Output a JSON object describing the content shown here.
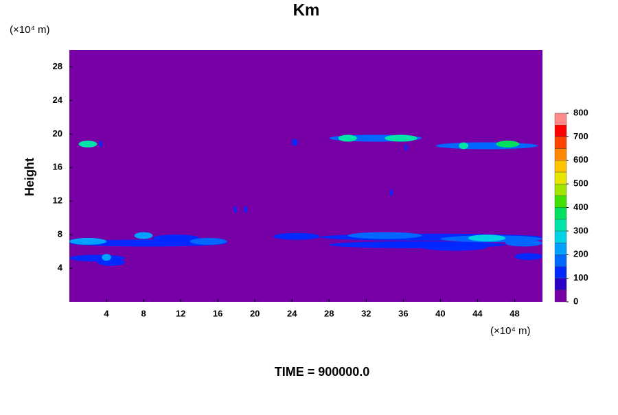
{
  "chart_data": {
    "type": "contour",
    "title": "Km",
    "y_unit": "(×10⁴ m)",
    "x_unit": "(×10⁴ m)",
    "y_label": "Height",
    "footer": "TIME = 900000.0",
    "xlim": [
      0,
      51
    ],
    "xticks": [
      4,
      8,
      12,
      16,
      20,
      24,
      28,
      32,
      36,
      40,
      44,
      48
    ],
    "ylim": [
      0,
      30
    ],
    "yticks": [
      4,
      8,
      12,
      16,
      20,
      24,
      28
    ],
    "colorbar": {
      "levels": [
        0,
        50,
        100,
        150,
        200,
        250,
        300,
        350,
        400,
        450,
        500,
        550,
        600,
        650,
        700,
        750,
        800
      ],
      "colors": [
        "#7600a6",
        "#2a00c4",
        "#0028ff",
        "#0068ff",
        "#00a0ff",
        "#00d2e6",
        "#00e4a8",
        "#00e060",
        "#40e000",
        "#a0e400",
        "#e6e600",
        "#ffc400",
        "#ff8800",
        "#ff4400",
        "#ff0000",
        "#ff8a8a"
      ],
      "ticks": [
        0,
        100,
        200,
        300,
        400,
        500,
        600,
        700,
        800
      ]
    },
    "features": {
      "x_start": [
        0,
        0,
        0,
        3,
        3.5,
        7,
        9,
        13,
        22,
        27,
        30,
        28,
        40,
        43,
        47,
        38,
        48,
        1,
        28,
        29,
        34,
        39.5,
        46,
        42,
        3.3,
        17.8,
        18.9,
        24,
        34.6,
        36.2
      ],
      "x_end": [
        17,
        4,
        6,
        6,
        4.5,
        9,
        14,
        17,
        27,
        51,
        38,
        47,
        51,
        47,
        51,
        45,
        51,
        3,
        38,
        31,
        37.5,
        50.5,
        48.5,
        43,
        3.5,
        18,
        19.1,
        24.6,
        34.8,
        36.4
      ],
      "y": [
        7.0,
        7.2,
        5.2,
        4.7,
        5.3,
        7.9,
        7.6,
        7.2,
        7.8,
        7.7,
        7.9,
        6.8,
        7.5,
        7.6,
        7.0,
        6.5,
        5.4,
        18.8,
        19.5,
        19.5,
        19.5,
        18.6,
        18.8,
        18.6,
        18.8,
        11,
        11,
        19,
        13,
        18.4
      ],
      "values": [
        100,
        200,
        100,
        100,
        200,
        200,
        100,
        150,
        100,
        100,
        150,
        100,
        150,
        250,
        150,
        100,
        100,
        300,
        150,
        300,
        300,
        150,
        350,
        300,
        100,
        100,
        100,
        100,
        100,
        100
      ]
    }
  }
}
